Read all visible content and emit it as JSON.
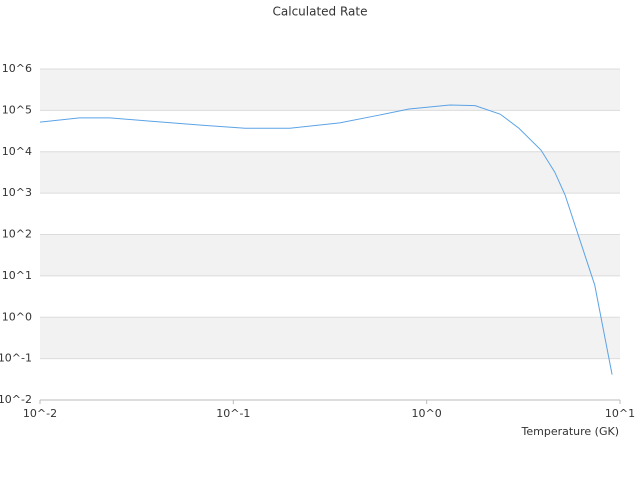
{
  "chart_data": {
    "type": "line",
    "title": "Calculated Rate",
    "x_label": "Temperature (GK)",
    "xscale": "log",
    "yscale": "log",
    "grid": true,
    "xlim": [
      0.01,
      10
    ],
    "ylim": [
      0.01,
      1000000
    ],
    "xticks": [
      {
        "value": 0.01,
        "label": "10^-2"
      },
      {
        "value": 0.1,
        "label": "10^-1"
      },
      {
        "value": 1,
        "label": "10^0"
      },
      {
        "value": 10,
        "label": "10^1"
      }
    ],
    "yticks": [
      {
        "value": 0.01,
        "label": "10^-2"
      },
      {
        "value": 0.1,
        "label": "10^-1"
      },
      {
        "value": 1,
        "label": "10^0"
      },
      {
        "value": 10,
        "label": "10^1"
      },
      {
        "value": 100,
        "label": "10^2"
      },
      {
        "value": 1000,
        "label": "10^3"
      },
      {
        "value": 10000,
        "label": "10^4"
      },
      {
        "value": 100000,
        "label": "10^5"
      },
      {
        "value": 1000000,
        "label": "10^6"
      }
    ],
    "series": [
      {
        "color": "#5ba3e6",
        "x": [
          0.01,
          0.016,
          0.023,
          0.037,
          0.068,
          0.115,
          0.196,
          0.355,
          0.57,
          0.81,
          1.32,
          1.78,
          2.4,
          3.0,
          3.9,
          4.6,
          5.2,
          6.2,
          7.4,
          9.1
        ],
        "values": [
          52000,
          66000,
          66000,
          55000,
          44000,
          37000,
          37000,
          50000,
          77000,
          108000,
          135000,
          130000,
          81000,
          37000,
          11000,
          3200,
          900,
          74,
          6.0,
          0.041
        ]
      }
    ]
  }
}
